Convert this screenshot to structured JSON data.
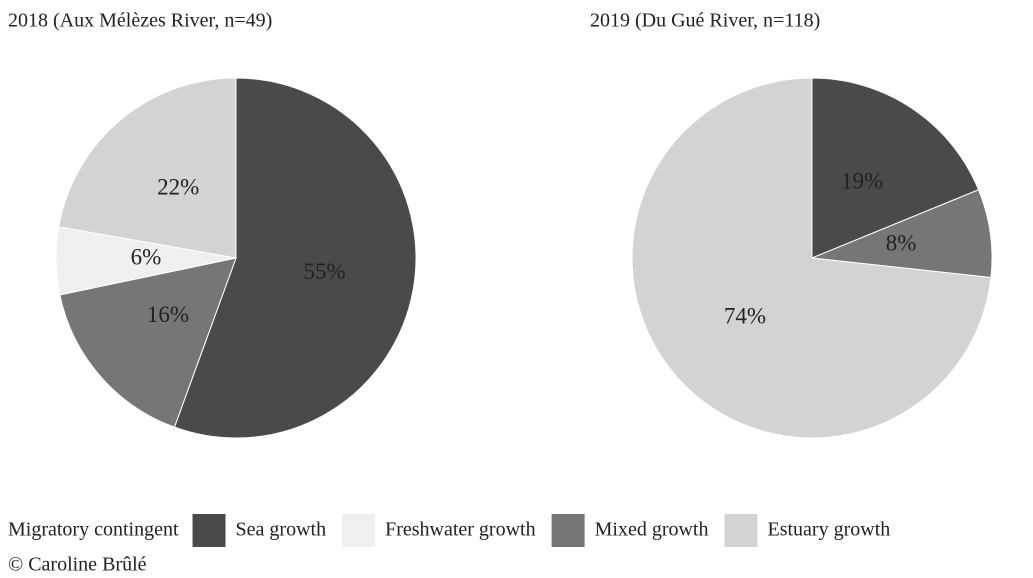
{
  "chart_data": [
    {
      "type": "pie",
      "title": "2018 (Aux Mélèzes River, n=49)",
      "categories": [
        "Sea growth",
        "Mixed growth",
        "Freshwater growth",
        "Estuary growth"
      ],
      "values": [
        55,
        16,
        6,
        22
      ],
      "value_labels": [
        "55%",
        "16%",
        "6%",
        "22%"
      ],
      "colors": [
        "#4a4a4a",
        "#767676",
        "#efefef",
        "#d3d3d3"
      ]
    },
    {
      "type": "pie",
      "title": "2019 (Du Gué River, n=118)",
      "categories": [
        "Sea growth",
        "Mixed growth",
        "Estuary growth"
      ],
      "values": [
        19,
        8,
        74
      ],
      "value_labels": [
        "19%",
        "8%",
        "74%"
      ],
      "colors": [
        "#4a4a4a",
        "#767676",
        "#d3d3d3"
      ]
    }
  ],
  "legend": {
    "title": "Migratory contingent",
    "items": [
      {
        "name": "Sea growth",
        "color": "#4a4a4a"
      },
      {
        "name": "Freshwater growth",
        "color": "#efefef"
      },
      {
        "name": "Mixed growth",
        "color": "#767676"
      },
      {
        "name": "Estuary growth",
        "color": "#d3d3d3"
      }
    ]
  },
  "credit": "© Caroline Brûlé"
}
